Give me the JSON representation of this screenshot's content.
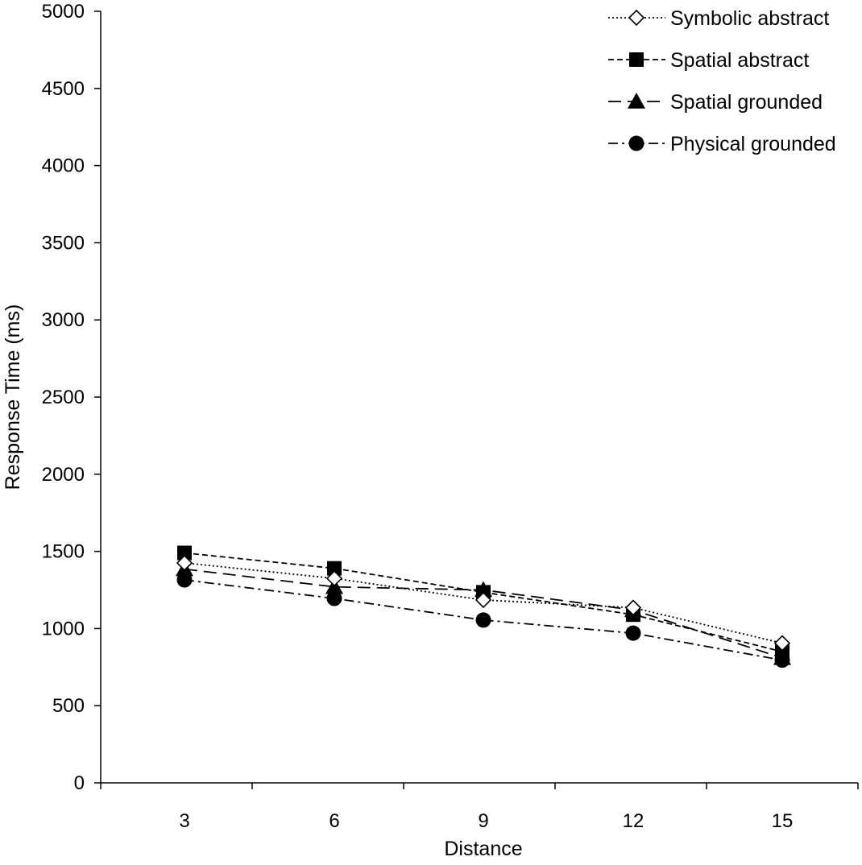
{
  "chart_data": {
    "type": "line",
    "title": "",
    "xlabel": "Distance",
    "ylabel": "Response Time (ms)",
    "categories": [
      "3",
      "6",
      "9",
      "12",
      "15"
    ],
    "ylim": [
      0,
      5000
    ],
    "yticks": [
      "0",
      "500",
      "1000",
      "1500",
      "2000",
      "2500",
      "3000",
      "3500",
      "4000",
      "4500",
      "5000"
    ],
    "grid": false,
    "legend_position": "top-right",
    "series": [
      {
        "name": "Symbolic abstract",
        "values": [
          1425,
          1325,
          1185,
          1135,
          905
        ],
        "marker": "diamond-open",
        "line_style": "dotted",
        "color": "#000000"
      },
      {
        "name": "Spatial abstract",
        "values": [
          1490,
          1390,
          1235,
          1090,
          850
        ],
        "marker": "square",
        "line_style": "dashed",
        "color": "#000000"
      },
      {
        "name": "Spatial grounded",
        "values": [
          1385,
          1270,
          1250,
          1120,
          810
        ],
        "marker": "triangle",
        "line_style": "long-dash",
        "color": "#000000"
      },
      {
        "name": "Physical grounded",
        "values": [
          1315,
          1195,
          1055,
          970,
          795
        ],
        "marker": "circle",
        "line_style": "dash-dot",
        "color": "#000000"
      }
    ]
  }
}
